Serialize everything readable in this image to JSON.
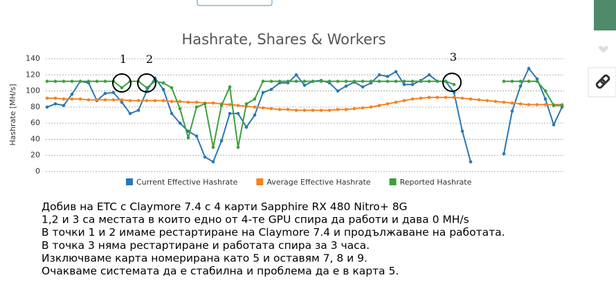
{
  "chart_data": {
    "type": "line",
    "title": "Hashrate, Shares & Workers",
    "y_label": "Hashrate [MH/s]",
    "ylim": [
      0,
      140
    ],
    "yticks": [
      0,
      20,
      40,
      60,
      80,
      100,
      120,
      140
    ],
    "grid": true,
    "series": [
      {
        "name": "Current Effective Hashrate",
        "color": "#2a77b4",
        "values": [
          80,
          84,
          82,
          96,
          112,
          110,
          88,
          97,
          98,
          86,
          72,
          76,
          100,
          116,
          102,
          72,
          60,
          50,
          44,
          18,
          12,
          38,
          72,
          72,
          55,
          70,
          98,
          102,
          110,
          110,
          120,
          107,
          112,
          113,
          110,
          100,
          106,
          111,
          105,
          110,
          120,
          118,
          124,
          108,
          108,
          113,
          120,
          112,
          112,
          98,
          50,
          12,
          null,
          null,
          null,
          22,
          75,
          106,
          128,
          115,
          90,
          58,
          80
        ]
      },
      {
        "name": "Average Effective Hashrate",
        "color": "#f58320",
        "values": [
          91,
          91,
          90,
          90,
          90,
          89,
          89,
          89,
          89,
          89,
          88,
          88,
          88,
          88,
          88,
          87,
          87,
          86,
          86,
          85,
          85,
          84,
          83,
          82,
          81,
          80,
          79,
          78,
          77,
          77,
          76,
          76,
          76,
          76,
          76,
          77,
          77,
          78,
          79,
          80,
          82,
          84,
          86,
          88,
          90,
          91,
          92,
          92,
          92,
          92,
          91,
          90,
          89,
          88,
          87,
          86,
          85,
          84,
          83,
          83,
          83,
          83,
          83
        ]
      },
      {
        "name": "Reported Hashrate",
        "color": "#3c9f3c",
        "values": [
          112,
          112,
          112,
          112,
          112,
          112,
          112,
          112,
          112,
          104,
          112,
          112,
          104,
          112,
          110,
          104,
          78,
          42,
          80,
          84,
          30,
          82,
          105,
          30,
          84,
          90,
          112,
          112,
          112,
          112,
          112,
          112,
          112,
          112,
          112,
          112,
          112,
          112,
          112,
          112,
          112,
          112,
          112,
          112,
          112,
          112,
          112,
          112,
          112,
          108,
          null,
          null,
          null,
          null,
          null,
          112,
          112,
          112,
          112,
          112,
          100,
          82,
          82
        ]
      }
    ],
    "annotations": [
      "1",
      "2",
      "3"
    ]
  },
  "notes": [
    "Добив на ETC с Claymore 7.4 с 4 карти Sapphire RX 480 Nitro+ 8G",
    "1,2 и 3 са местата в които едно от 4-те GPU спира да работи и дава 0 MH/s",
    "В точки 1 и 2 имаме рестартиране на Claymore 7.4 и продължаване на работата.",
    "В точка 3 няма рестартиране и работата спира за 3 часа.",
    "Изключваме карта номерирана като 5 и оставям 7, 8 и 9.",
    "Очакваме системата да е стабилна и проблема да е в карта 5."
  ]
}
